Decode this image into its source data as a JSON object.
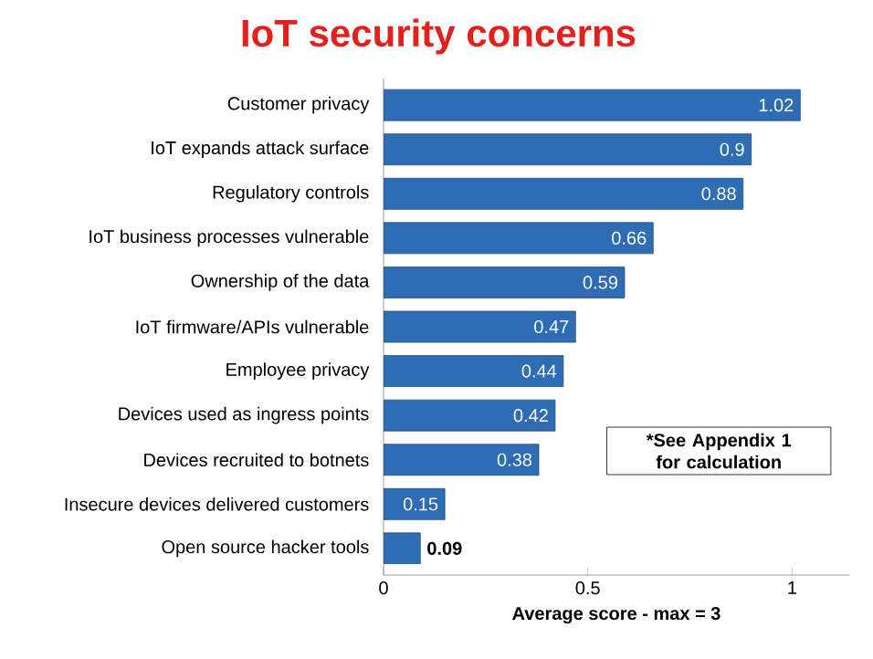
{
  "chart_data": {
    "type": "bar",
    "orientation": "horizontal",
    "title": "IoT security concerns",
    "xlabel": "Average score - max = 3",
    "categories": [
      "Customer privacy",
      "IoT expands attack surface",
      "Regulatory controls",
      "IoT business processes vulnerable",
      "Ownership of the data",
      "IoT firmware/APIs vulnerable",
      "Employee privacy",
      "Devices used as ingress points",
      "Devices recruited to botnets",
      "Insecure devices delivered customers",
      "Open source hacker tools"
    ],
    "values": [
      1.02,
      0.9,
      0.88,
      0.66,
      0.59,
      0.47,
      0.44,
      0.42,
      0.38,
      0.15,
      0.09
    ],
    "color": "#2e6db4",
    "data_labels": true,
    "xlim": [
      0,
      1.14
    ],
    "xticks": [
      0,
      0.5,
      1
    ],
    "grid": false,
    "annotations": [
      "*See Appendix 1 for calculation"
    ]
  }
}
